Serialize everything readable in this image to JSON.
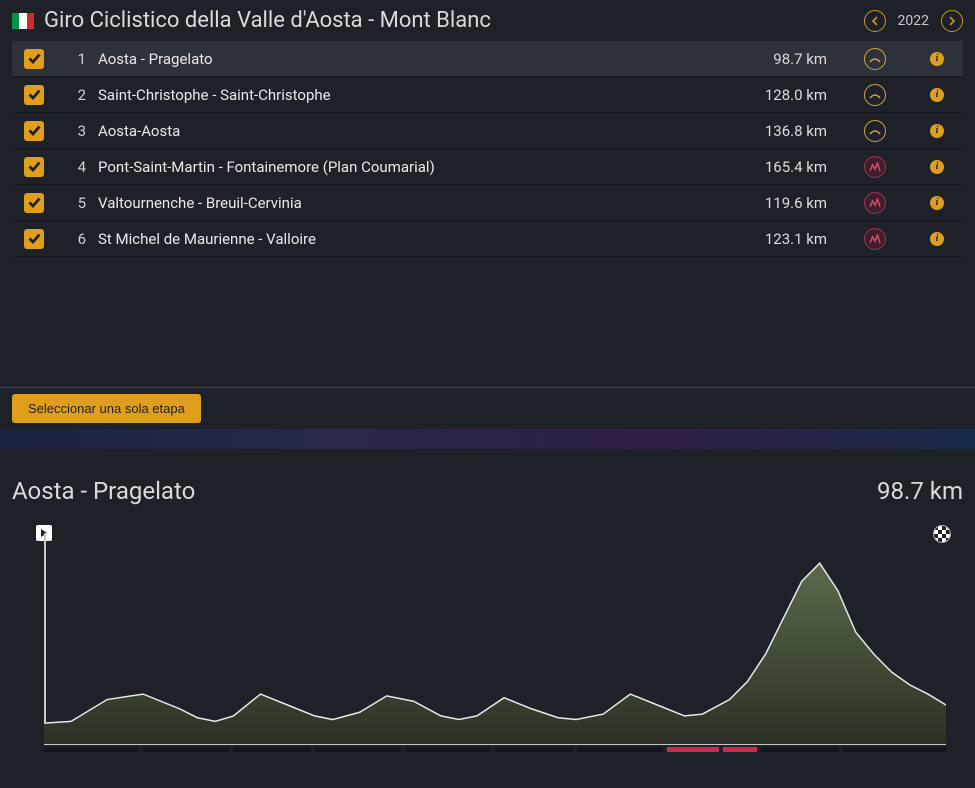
{
  "header": {
    "title": "Giro Ciclistico della Valle d'Aosta - Mont Blanc",
    "year": "2022",
    "flag_colors": [
      "#009246",
      "#ffffff",
      "#ce2b37"
    ]
  },
  "stages": [
    {
      "num": "1",
      "name": "Aosta - Pragelato",
      "distance": "98.7 km",
      "difficulty": "medium",
      "checked": true,
      "selected": true
    },
    {
      "num": "2",
      "name": "Saint-Christophe - Saint-Christophe",
      "distance": "128.0 km",
      "difficulty": "medium",
      "checked": true,
      "selected": false
    },
    {
      "num": "3",
      "name": "Aosta-Aosta",
      "distance": "136.8 km",
      "difficulty": "medium",
      "checked": true,
      "selected": false
    },
    {
      "num": "4",
      "name": "Pont-Saint-Martin - Fontainemore (Plan Coumarial)",
      "distance": "165.4 km",
      "difficulty": "hard",
      "checked": true,
      "selected": false
    },
    {
      "num": "5",
      "name": "Valtournenche - Breuil-Cervinia",
      "distance": "119.6 km",
      "difficulty": "hard",
      "checked": true,
      "selected": false
    },
    {
      "num": "6",
      "name": "St Michel de Maurienne - Valloire",
      "distance": "123.1 km",
      "difficulty": "hard",
      "checked": true,
      "selected": false
    }
  ],
  "buttons": {
    "select_single": "Seleccionar una sola etapa"
  },
  "profile": {
    "title": "Aosta - Pragelato",
    "distance": "98.7 km",
    "elevation_points": [
      [
        0,
        12
      ],
      [
        3,
        13
      ],
      [
        7,
        25
      ],
      [
        11,
        28
      ],
      [
        15,
        20
      ],
      [
        17,
        15
      ],
      [
        19,
        13
      ],
      [
        21,
        16
      ],
      [
        24,
        28
      ],
      [
        27,
        22
      ],
      [
        30,
        16
      ],
      [
        32,
        14
      ],
      [
        35,
        18
      ],
      [
        38,
        27
      ],
      [
        41,
        24
      ],
      [
        44,
        16
      ],
      [
        46,
        14
      ],
      [
        48,
        16
      ],
      [
        51,
        26
      ],
      [
        54,
        20
      ],
      [
        57,
        15
      ],
      [
        59,
        14
      ],
      [
        62,
        17
      ],
      [
        65,
        28
      ],
      [
        68,
        22
      ],
      [
        71,
        16
      ],
      [
        73,
        17
      ],
      [
        76,
        25
      ],
      [
        78,
        35
      ],
      [
        80,
        50
      ],
      [
        82,
        70
      ],
      [
        84,
        90
      ],
      [
        86,
        100
      ],
      [
        88,
        85
      ],
      [
        90,
        62
      ],
      [
        92,
        50
      ],
      [
        94,
        40
      ],
      [
        96,
        33
      ],
      [
        98,
        28
      ],
      [
        100,
        22
      ]
    ],
    "fill_color_top": "#4a5440",
    "fill_color_bottom": "#2a3025",
    "line_color": "#e8e8e8",
    "segments": [
      {
        "width": 11,
        "color": "dark"
      },
      {
        "width": 10,
        "color": "dark"
      },
      {
        "width": 9,
        "color": "dark"
      },
      {
        "width": 10,
        "color": "dark"
      },
      {
        "width": 10,
        "color": "dark"
      },
      {
        "width": 9,
        "color": "dark"
      },
      {
        "width": 10,
        "color": "dark"
      },
      {
        "width": 6,
        "color": "pink"
      },
      {
        "width": 4,
        "color": "pink"
      },
      {
        "width": 9,
        "color": "dark"
      },
      {
        "width": 12,
        "color": "dark"
      }
    ]
  },
  "colors": {
    "accent": "#df9f1c",
    "hard": "#a13452",
    "bg": "#1e2128"
  }
}
